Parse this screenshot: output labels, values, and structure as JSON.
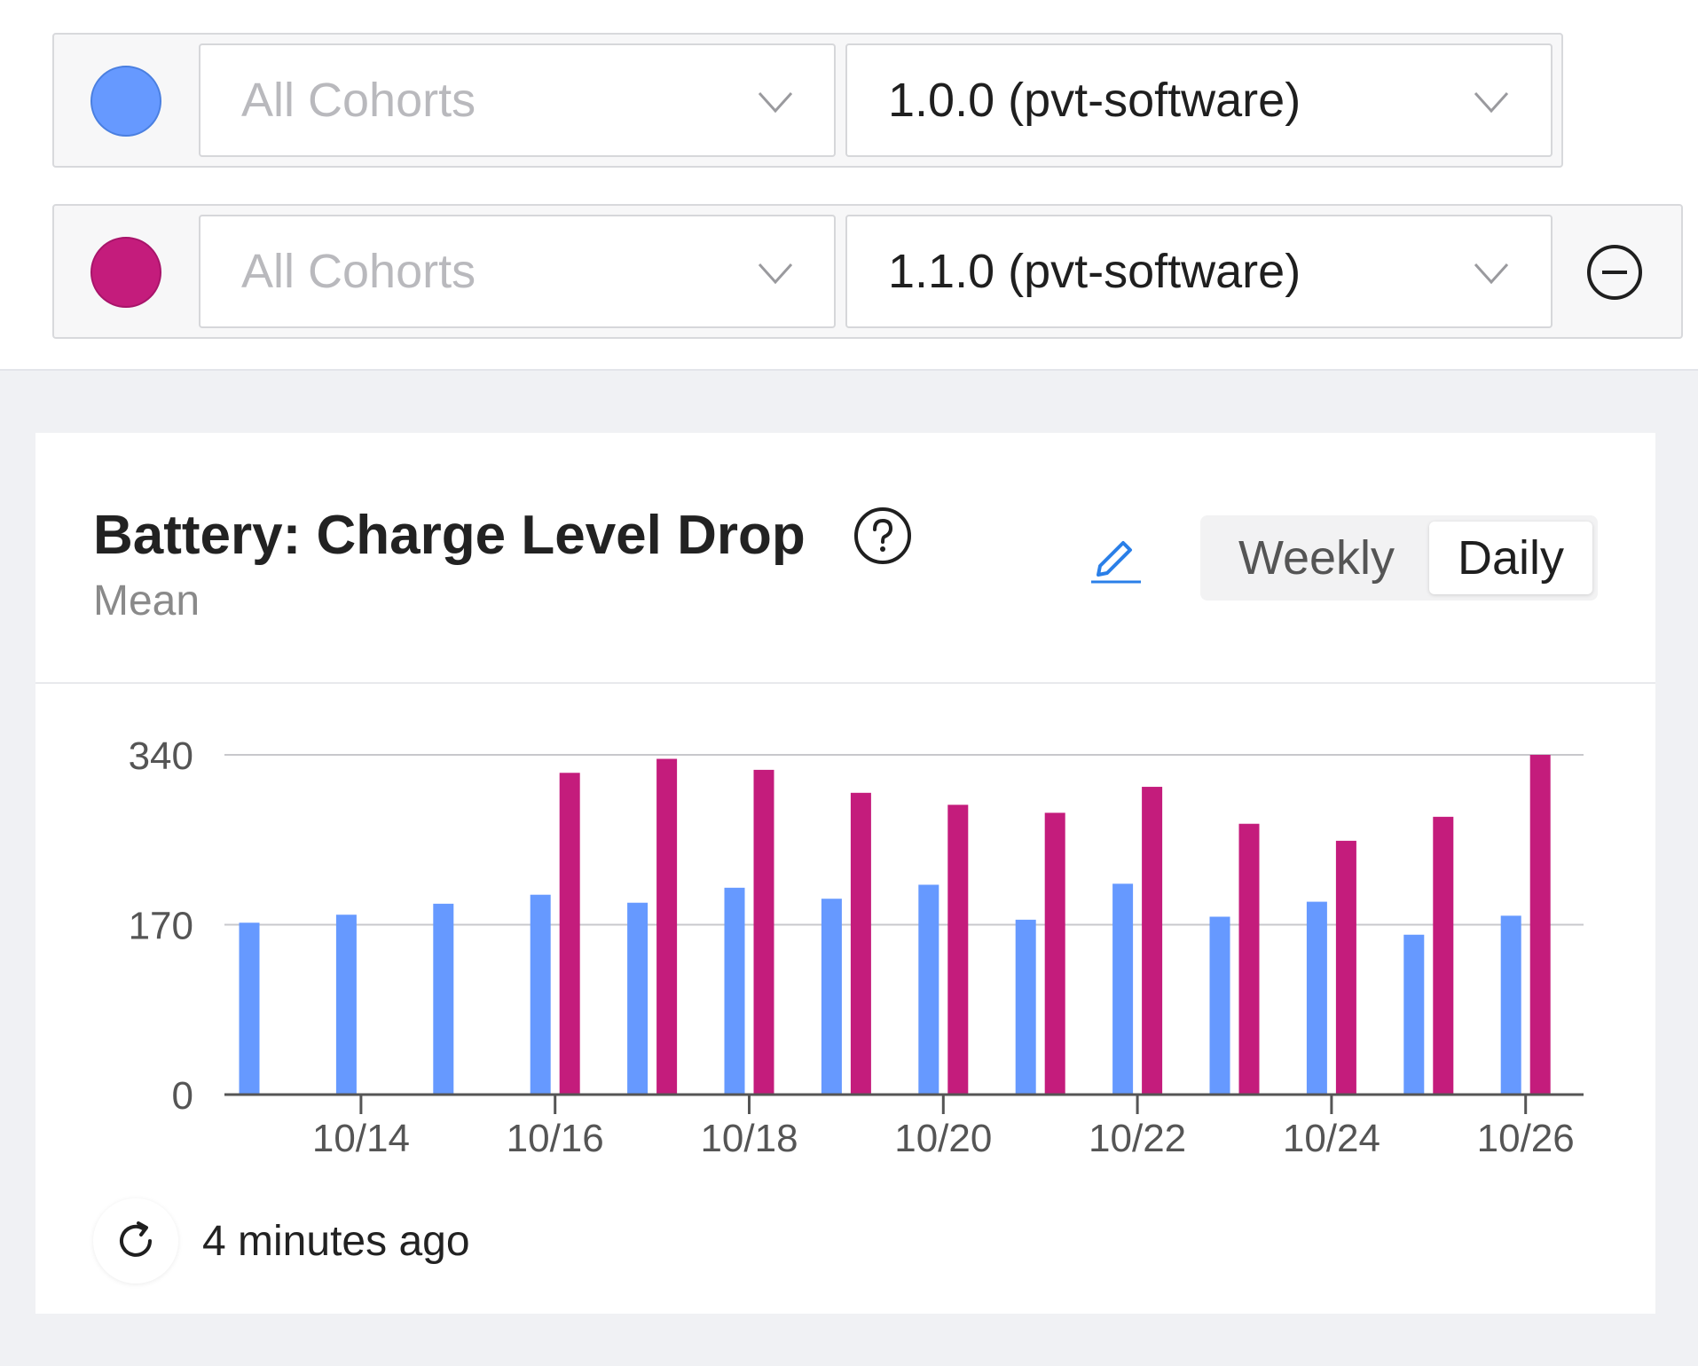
{
  "cohort_rows": [
    {
      "color": "#6699ff",
      "cohort_value": "All Cohorts",
      "version_value": "1.0.0 (pvt-software)"
    },
    {
      "color": "#c41c7c",
      "cohort_value": "All Cohorts",
      "version_value": "1.1.0 (pvt-software)"
    }
  ],
  "card": {
    "title": "Battery: Charge Level Drop",
    "subtitle": "Mean",
    "toggle": {
      "weekly": "Weekly",
      "daily": "Daily",
      "selected": "Daily"
    },
    "updated": "4 minutes ago"
  },
  "chart_data": {
    "type": "bar",
    "title": "Battery: Charge Level Drop",
    "subtitle": "Mean",
    "categories": [
      "10/13",
      "10/14",
      "10/15",
      "10/16",
      "10/17",
      "10/18",
      "10/19",
      "10/20",
      "10/21",
      "10/22",
      "10/23",
      "10/24",
      "10/25",
      "10/26"
    ],
    "x_tick_labels": [
      "10/14",
      "10/16",
      "10/18",
      "10/20",
      "10/22",
      "10/24",
      "10/26"
    ],
    "y_ticks": [
      0,
      170,
      340
    ],
    "ylim": [
      0,
      340
    ],
    "grid": true,
    "legend": "none",
    "series": [
      {
        "color": "#6699ff",
        "values": [
          172,
          180,
          191,
          200,
          192,
          207,
          196,
          210,
          175,
          211,
          178,
          193,
          160,
          179
        ]
      },
      {
        "color": "#c41c7c",
        "values": [
          null,
          null,
          null,
          322,
          336,
          325,
          302,
          290,
          282,
          308,
          271,
          254,
          278,
          340
        ]
      }
    ]
  }
}
